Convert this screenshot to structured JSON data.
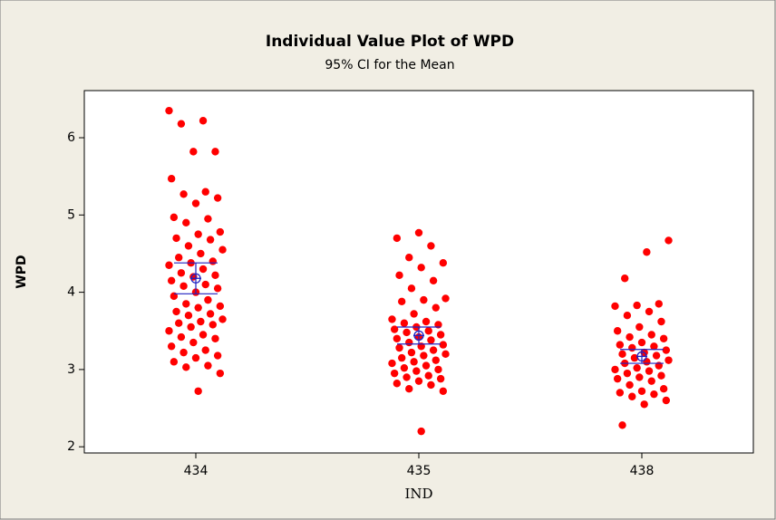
{
  "chart_data": {
    "type": "strip",
    "title": "Individual Value Plot of WPD",
    "subtitle": "95% CI for the Mean",
    "xlabel": "IND",
    "ylabel": "WPD",
    "categories": [
      "434",
      "435",
      "438"
    ],
    "values": [
      [
        6.35,
        6.22,
        6.18,
        5.82,
        5.82,
        5.47,
        5.3,
        5.27,
        5.22,
        5.15,
        4.97,
        4.95,
        4.9,
        4.78,
        4.75,
        4.7,
        4.68,
        4.6,
        4.55,
        4.5,
        4.45,
        4.4,
        4.38,
        4.35,
        4.3,
        4.25,
        4.22,
        4.2,
        4.15,
        4.1,
        4.08,
        4.05,
        4.0,
        3.95,
        3.9,
        3.85,
        3.82,
        3.8,
        3.75,
        3.72,
        3.7,
        3.65,
        3.62,
        3.6,
        3.58,
        3.55,
        3.5,
        3.45,
        3.42,
        3.4,
        3.35,
        3.3,
        3.25,
        3.22,
        3.18,
        3.15,
        3.1,
        3.05,
        3.03,
        2.95,
        2.72
      ],
      [
        4.77,
        4.7,
        4.6,
        4.45,
        4.38,
        4.32,
        4.22,
        4.15,
        4.05,
        3.92,
        3.9,
        3.88,
        3.8,
        3.72,
        3.65,
        3.62,
        3.6,
        3.58,
        3.55,
        3.52,
        3.5,
        3.48,
        3.45,
        3.42,
        3.4,
        3.38,
        3.35,
        3.32,
        3.3,
        3.28,
        3.25,
        3.22,
        3.2,
        3.18,
        3.15,
        3.12,
        3.1,
        3.08,
        3.05,
        3.02,
        3.0,
        2.98,
        2.95,
        2.92,
        2.9,
        2.88,
        2.85,
        2.82,
        2.8,
        2.75,
        2.72,
        2.2
      ],
      [
        4.67,
        4.52,
        4.18,
        3.85,
        3.83,
        3.82,
        3.75,
        3.7,
        3.62,
        3.55,
        3.5,
        3.45,
        3.42,
        3.4,
        3.35,
        3.32,
        3.3,
        3.28,
        3.25,
        3.22,
        3.2,
        3.18,
        3.15,
        3.12,
        3.1,
        3.08,
        3.05,
        3.02,
        3.0,
        2.98,
        2.95,
        2.92,
        2.9,
        2.88,
        2.85,
        2.8,
        2.75,
        2.72,
        2.7,
        2.68,
        2.65,
        2.6,
        2.55,
        2.28
      ]
    ],
    "mean": [
      4.18,
      3.44,
      3.17
    ],
    "ci_low": [
      3.98,
      3.33,
      3.08
    ],
    "ci_high": [
      4.38,
      3.55,
      3.26
    ],
    "color": "#ff0000",
    "ci_color": "#2020c0",
    "ylim": [
      1.92,
      6.61
    ],
    "yticks": [
      2,
      3,
      4,
      5,
      6
    ]
  }
}
